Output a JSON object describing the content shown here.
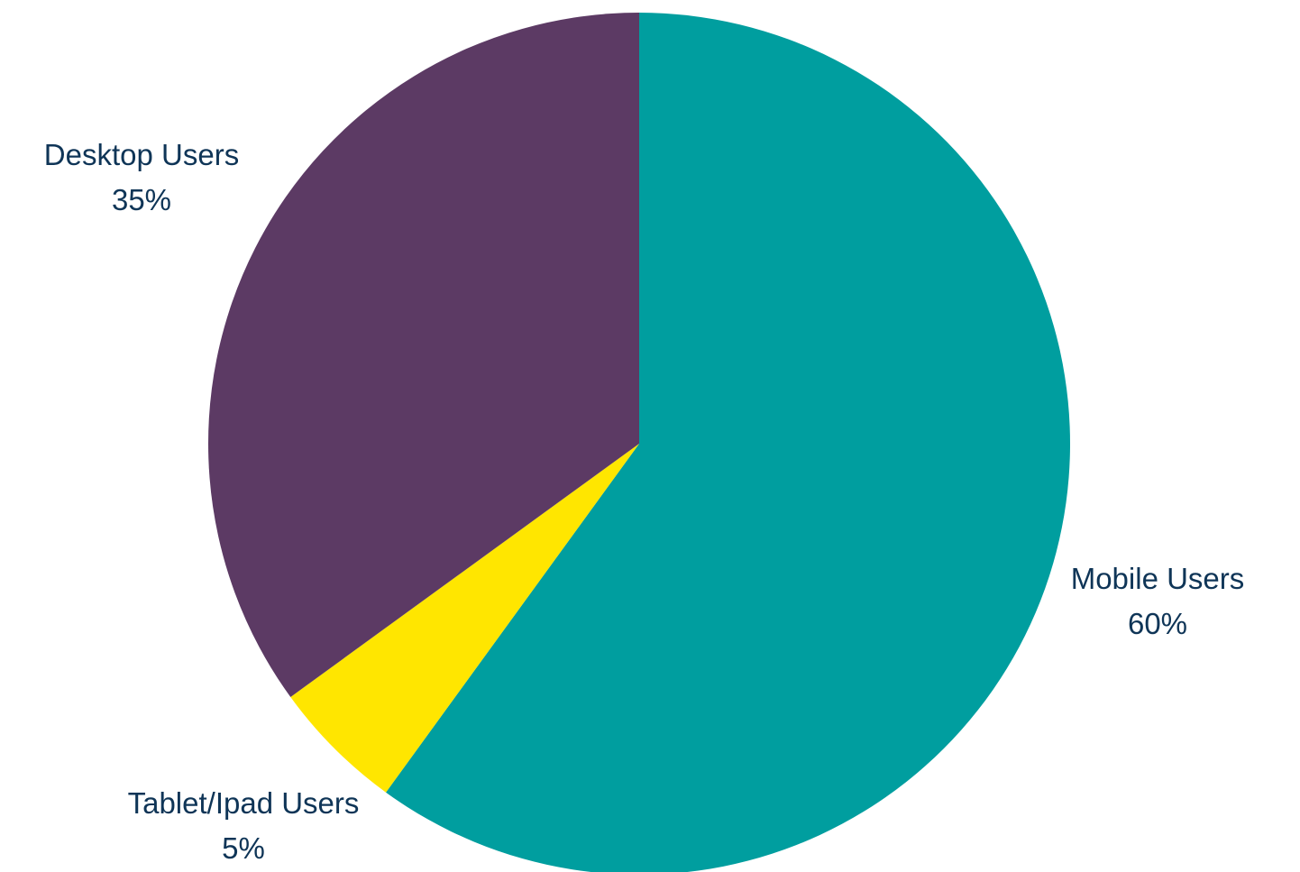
{
  "chart_data": {
    "type": "pie",
    "title": "",
    "slices": [
      {
        "label": "Mobile Users",
        "value": 60,
        "value_label": "60%",
        "color": "#009e9f"
      },
      {
        "label": "Tablet/Ipad Users",
        "value": 5,
        "value_label": "5%",
        "color": "#ffe600"
      },
      {
        "label": "Desktop Users",
        "value": 35,
        "value_label": "35%",
        "color": "#5c3a64"
      }
    ],
    "start_angle": "12 o'clock",
    "direction": "clockwise",
    "legend": "none",
    "data_labels": "outside"
  }
}
